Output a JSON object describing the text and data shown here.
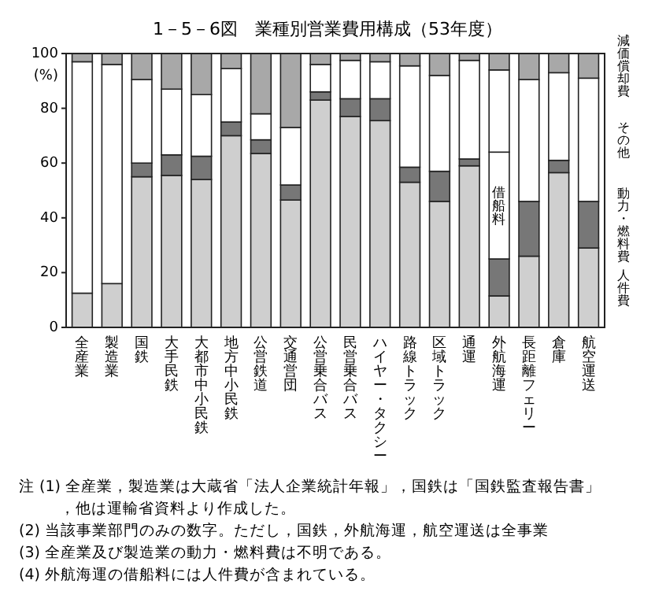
{
  "chart_data": {
    "type": "bar",
    "stacked": true,
    "title": "1－5－6図　業種別営業費用構成（53年度）",
    "ylabel": "(%)",
    "categories": [
      "全産業",
      "製造業",
      "国鉄",
      "大手民鉄",
      "大都市中小民鉄",
      "地方中小民鉄",
      "公営鉄道",
      "交通営団",
      "公営乗合バス",
      "民営乗合バス",
      "ハイヤー・タクシー",
      "路線トラック",
      "区域トラック",
      "通運",
      "外航海運",
      "長距離フェリー",
      "倉庫",
      "航空運送"
    ],
    "series": [
      {
        "name": "人件費",
        "color": "#cfcfcf",
        "values": [
          12.5,
          16,
          55,
          55.5,
          54,
          70,
          63.5,
          46.5,
          83,
          77,
          75.5,
          53,
          46,
          59,
          11.5,
          26,
          56.5,
          29
        ]
      },
      {
        "name": "動力・燃料費",
        "color": "#777777",
        "values": [
          null,
          null,
          5,
          7.5,
          8.5,
          5,
          5,
          5.5,
          3,
          6.5,
          8,
          5.5,
          11,
          2.5,
          13.5,
          20,
          4.5,
          17
        ]
      },
      {
        "name": "借船料",
        "color": "#ffffff",
        "values": [
          null,
          null,
          null,
          null,
          null,
          null,
          null,
          null,
          null,
          null,
          null,
          null,
          null,
          null,
          39,
          null,
          null,
          null
        ]
      },
      {
        "name": "その他",
        "color": "#ffffff",
        "values": [
          84.5,
          80,
          30.5,
          24,
          22.5,
          19.5,
          9.5,
          21,
          10,
          14,
          13.5,
          37,
          35,
          36,
          30,
          44.5,
          32,
          45
        ]
      },
      {
        "name": "減価償却費",
        "color": "#a8a8a8",
        "values": [
          3,
          4,
          9.5,
          13,
          15,
          5.5,
          22,
          27,
          4,
          2.5,
          3,
          4.5,
          8,
          2.5,
          6,
          9.5,
          7,
          9
        ]
      }
    ],
    "ylim": [
      0,
      100
    ],
    "yticks": [
      0,
      20,
      40,
      60,
      80,
      100
    ],
    "grid": false,
    "legend": "right",
    "annotations": [
      "注 (1) 全産業，製造業は大蔵省「法人企業統計年報」，国鉄は「国鉄監査報告書」，他は運輸省資料より作成した。",
      "(2) 当該事業部門のみの数字。ただし，国鉄，外航海運，航空運送は全事業",
      "(3) 全産業及び製造業の動力・燃料費は不明である。",
      "(4) 外航海運の借船料には人件費が含まれている。"
    ]
  }
}
